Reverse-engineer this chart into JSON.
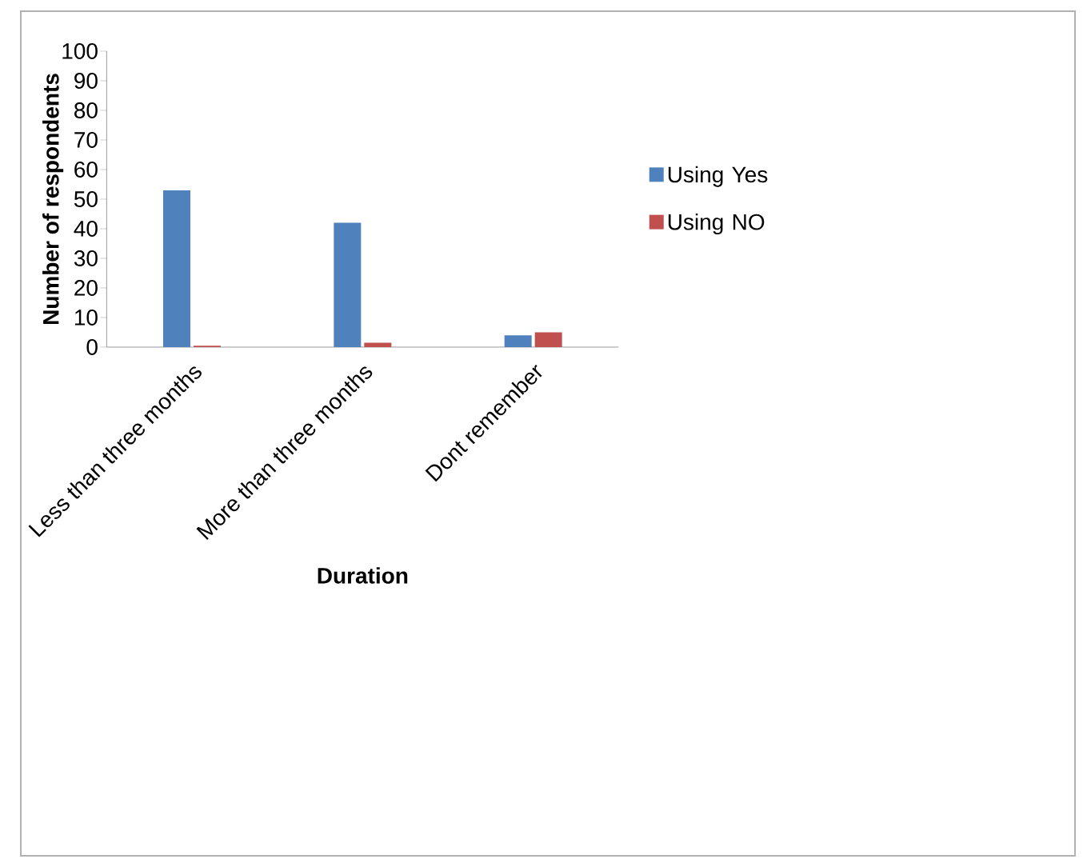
{
  "chart_data": {
    "type": "bar",
    "xlabel": "Duration",
    "ylabel": "Number of respondents",
    "categories": [
      "Less  than three months",
      "More than three months",
      "Dont remember"
    ],
    "series": [
      {
        "name": "Using Yes",
        "color": "#4f81bd",
        "values": [
          53,
          42,
          4
        ]
      },
      {
        "name": "Using NO",
        "color": "#c0504d",
        "values": [
          0.5,
          1.5,
          5
        ]
      }
    ],
    "ylim": [
      0,
      100
    ],
    "yticks": [
      0,
      10,
      20,
      30,
      40,
      50,
      60,
      70,
      80,
      90,
      100
    ],
    "legend": "right",
    "grid": false
  }
}
